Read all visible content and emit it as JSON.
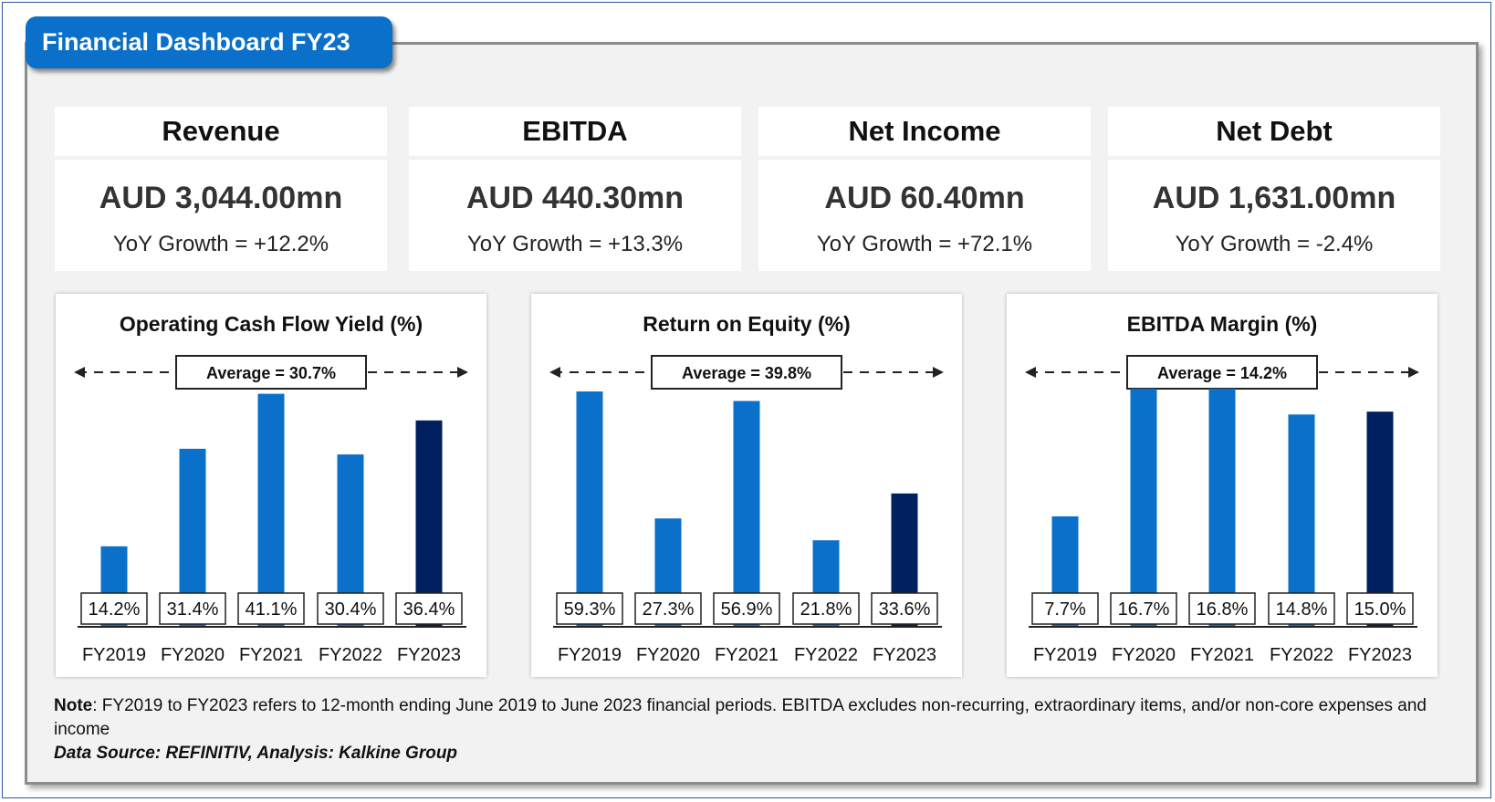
{
  "header": {
    "title": "Financial Dashboard FY23"
  },
  "kpis": [
    {
      "label": "Revenue",
      "value": "AUD 3,044.00mn",
      "growth": "YoY Growth = +12.2%"
    },
    {
      "label": "EBITDA",
      "value": "AUD 440.30mn",
      "growth": "YoY Growth = +13.3%"
    },
    {
      "label": "Net Income",
      "value": "AUD 60.40mn",
      "growth": "YoY Growth = +72.1%"
    },
    {
      "label": "Net Debt",
      "value": "AUD 1,631.00mn",
      "growth": "YoY Growth = -2.4%"
    }
  ],
  "chart_data": [
    {
      "type": "bar",
      "title": "Operating Cash Flow Yield (%)",
      "categories": [
        "FY2019",
        "FY2020",
        "FY2021",
        "FY2022",
        "FY2023"
      ],
      "values": [
        14.2,
        31.4,
        41.1,
        30.4,
        36.4
      ],
      "value_labels": [
        "14.2%",
        "31.4%",
        "41.1%",
        "30.4%",
        "36.4%"
      ],
      "average_label": "Average = 30.7%",
      "ylim": [
        0,
        42
      ]
    },
    {
      "type": "bar",
      "title": "Return on Equity (%)",
      "categories": [
        "FY2019",
        "FY2020",
        "FY2021",
        "FY2022",
        "FY2023"
      ],
      "values": [
        59.3,
        27.3,
        56.9,
        21.8,
        33.6
      ],
      "value_labels": [
        "59.3%",
        "27.3%",
        "56.9%",
        "21.8%",
        "33.6%"
      ],
      "average_label": "Average = 39.8%",
      "ylim": [
        0,
        60
      ]
    },
    {
      "type": "bar",
      "title": "EBITDA Margin (%)",
      "categories": [
        "FY2019",
        "FY2020",
        "FY2021",
        "FY2022",
        "FY2023"
      ],
      "values": [
        7.7,
        16.7,
        16.8,
        14.8,
        15.0
      ],
      "value_labels": [
        "7.7%",
        "16.7%",
        "16.8%",
        "14.8%",
        "15.0%"
      ],
      "average_label": "Average = 14.2%",
      "ylim": [
        0,
        16.6
      ]
    }
  ],
  "colors": {
    "bar": "#0a70c9",
    "bar_highlight": "#002060",
    "title_tab": "#0a70c9"
  },
  "footer": {
    "note_label": "Note",
    "note_text": ": FY2019 to FY2023 refers to 12-month ending June 2019 to June 2023 financial periods. EBITDA excludes non-recurring, extraordinary items, and/or non-core expenses and income",
    "source": "Data Source: REFINITIV, Analysis: Kalkine Group"
  }
}
